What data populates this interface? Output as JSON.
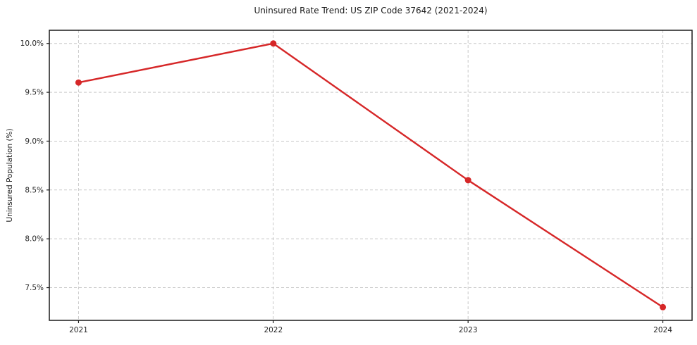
{
  "chart_data": {
    "type": "line",
    "title": "Uninsured Rate Trend: US ZIP Code 37642 (2021-2024)",
    "xlabel": "",
    "ylabel": "Uninsured Population (%)",
    "x": [
      2021,
      2022,
      2023,
      2024
    ],
    "xtick_labels": [
      "2021",
      "2022",
      "2023",
      "2024"
    ],
    "series": [
      {
        "name": "Uninsured Rate",
        "values": [
          9.6,
          10.0,
          8.6,
          7.3
        ]
      }
    ],
    "ytick_values": [
      7.5,
      8.0,
      8.5,
      9.0,
      9.5,
      10.0
    ],
    "ytick_labels": [
      "7.5%",
      "8.0%",
      "8.5%",
      "9.0%",
      "9.5%",
      "10.0%"
    ],
    "xlim": [
      2020.85,
      2024.15
    ],
    "ylim": [
      7.165,
      10.135
    ],
    "grid": true,
    "grid_style": "dashed",
    "legend": "none",
    "colors": {
      "line": "#d62728",
      "marker": "#d62728",
      "grid": "#c9c9c9",
      "spine": "#1a1a1a",
      "text": "#262626",
      "background": "#ffffff"
    }
  }
}
